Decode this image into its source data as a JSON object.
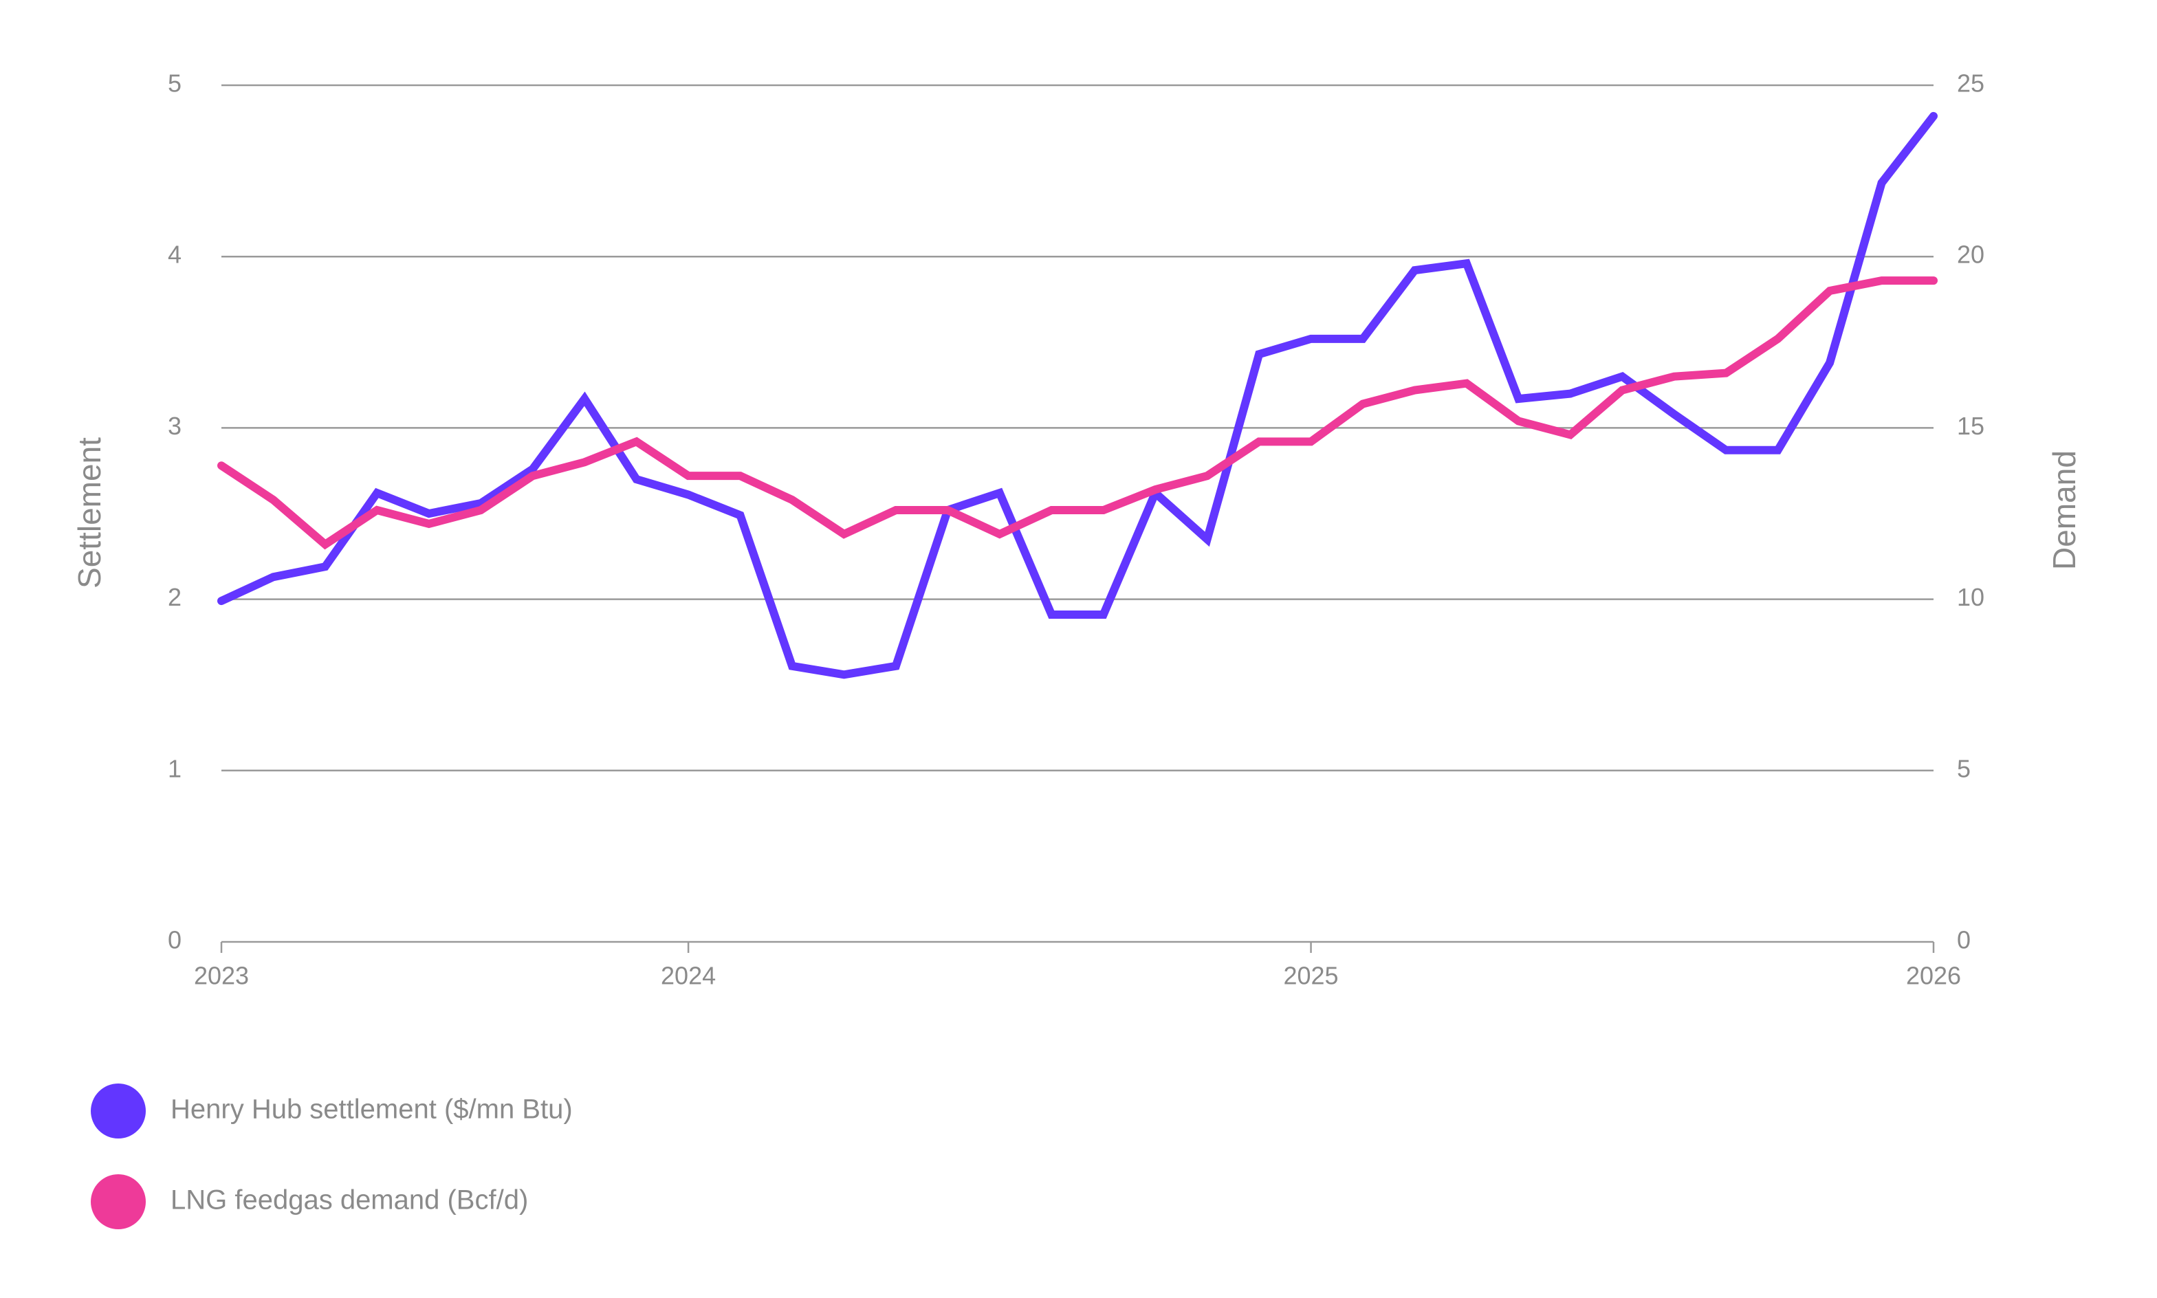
{
  "chart_data": {
    "type": "line",
    "x": [
      0,
      1,
      2,
      3,
      4,
      5,
      6,
      7,
      8,
      9,
      10,
      11,
      12,
      13,
      14,
      15,
      16,
      17,
      18,
      19,
      20,
      21,
      22,
      23,
      24,
      25,
      26,
      27,
      28,
      29,
      30,
      31,
      32,
      33
    ],
    "xlim": [
      0,
      33
    ],
    "xticks": [
      {
        "value": 0,
        "label": "2023"
      },
      {
        "value": 9,
        "label": "2024"
      },
      {
        "value": 21,
        "label": "2025"
      },
      {
        "value": 33,
        "label": "2026"
      }
    ],
    "ylabel": "Settlement",
    "y2label": "Demand",
    "ylim": [
      0,
      5
    ],
    "yticks": [
      0,
      1,
      2,
      3,
      4,
      5
    ],
    "y2lim": [
      0,
      25
    ],
    "y2ticks": [
      0,
      5,
      10,
      15,
      20,
      25
    ],
    "grid": true,
    "series": [
      {
        "name": "Henry Hub settlement ($/mn Btu)",
        "color": "#6236ff",
        "values": [
          1.99,
          2.13,
          2.19,
          2.62,
          2.5,
          2.56,
          2.76,
          3.17,
          2.7,
          2.61,
          2.49,
          1.61,
          1.56,
          1.61,
          2.52,
          2.62,
          1.91,
          1.91,
          2.62,
          2.35,
          3.43,
          3.52,
          3.52,
          3.92,
          3.96,
          3.17,
          3.2,
          3.3,
          3.08,
          2.87,
          2.87,
          3.38,
          4.43,
          4.82
        ]
      },
      {
        "name": "LNG feedgas demand (Bcf/d)",
        "color": "#ee3a99",
        "axis": "y2",
        "values": [
          13.9,
          12.9,
          11.6,
          12.6,
          12.2,
          12.6,
          13.6,
          14.0,
          14.6,
          13.6,
          13.6,
          12.9,
          11.9,
          12.6,
          12.6,
          11.9,
          12.6,
          12.6,
          13.2,
          13.6,
          14.6,
          14.6,
          15.7,
          16.1,
          16.3,
          15.2,
          14.8,
          16.1,
          16.5,
          16.6,
          17.6,
          19.0,
          19.3,
          19.3
        ]
      }
    ]
  }
}
